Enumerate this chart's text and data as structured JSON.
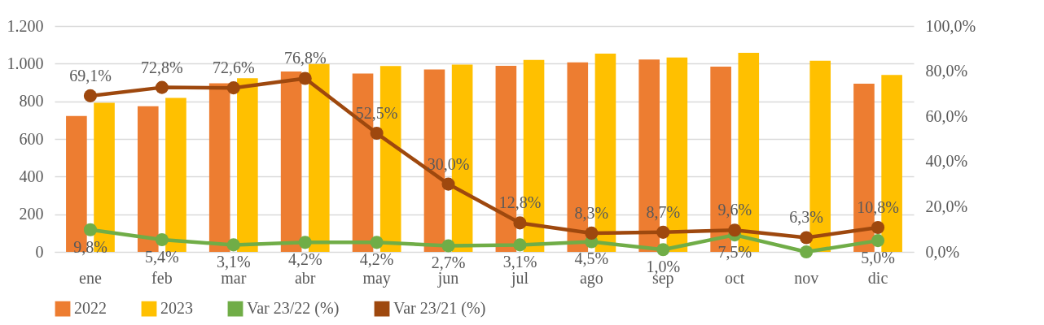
{
  "chart_data": {
    "type": "bar",
    "categories": [
      "ene",
      "feb",
      "mar",
      "abr",
      "may",
      "jun",
      "jul",
      "ago",
      "sep",
      "oct",
      "nov",
      "dic"
    ],
    "series": [
      {
        "name": "2022",
        "color": "#ed7d31",
        "values": [
          722,
          774,
          896,
          958,
          947,
          969,
          989,
          1007,
          1022,
          984,
          null,
          894
        ]
      },
      {
        "name": "2023",
        "color": "#ffc000",
        "values": [
          792,
          818,
          923,
          998,
          987,
          995,
          1020,
          1053,
          1033,
          1058,
          1016,
          940
        ]
      },
      {
        "name": "Var 23/22 (%)",
        "type": "line",
        "axis": "y2",
        "color": "#70ad47",
        "values": [
          9.8,
          5.4,
          3.1,
          4.2,
          4.2,
          2.7,
          3.1,
          4.5,
          1.0,
          7.5,
          0,
          5.0
        ],
        "value_labels": [
          "9,8%",
          "5,4%",
          "3,1%",
          "4,2%",
          "4,2%",
          "2,7%",
          "3,1%",
          "4,5%",
          "1,0%",
          "7,5%",
          null,
          "5,0%"
        ]
      },
      {
        "name": "Var 23/21 (%)",
        "type": "line",
        "axis": "y2",
        "color": "#9e480e",
        "values": [
          69.1,
          72.8,
          72.6,
          76.8,
          52.5,
          30.0,
          12.8,
          8.3,
          8.7,
          9.6,
          6.3,
          10.8
        ],
        "value_labels": [
          "69,1%",
          "72,8%",
          "72,6%",
          "76,8%",
          "52,5%",
          "30,0%",
          "12,8%",
          "8,3%",
          "8,7%",
          "9,6%",
          "6,3%",
          "10,8%"
        ]
      }
    ],
    "ylim": [
      0,
      1200
    ],
    "yticks": [
      {
        "value": 0,
        "label": "0"
      },
      {
        "value": 200,
        "label": "200"
      },
      {
        "value": 400,
        "label": "400"
      },
      {
        "value": 600,
        "label": "600"
      },
      {
        "value": 800,
        "label": "800"
      },
      {
        "value": 1000,
        "label": "1.000"
      },
      {
        "value": 1200,
        "label": "1.200"
      }
    ],
    "y2lim": [
      0,
      100
    ],
    "y2ticks": [
      {
        "value": 0,
        "label": "0,0%"
      },
      {
        "value": 20,
        "label": "20,0%"
      },
      {
        "value": 40,
        "label": "40,0%"
      },
      {
        "value": 60,
        "label": "60,0%"
      },
      {
        "value": 80,
        "label": "80,0%"
      },
      {
        "value": 100,
        "label": "100,0%"
      }
    ],
    "grid": "y",
    "legend": "bottom",
    "marker": "circle",
    "line_style": "solid"
  }
}
